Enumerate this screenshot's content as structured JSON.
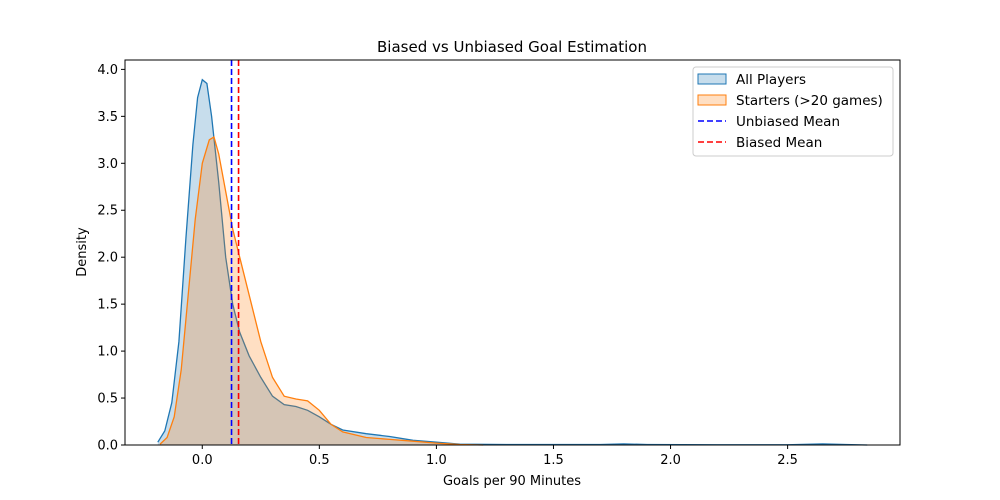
{
  "chart_data": {
    "type": "area",
    "title": "Biased vs Unbiased Goal Estimation",
    "xlabel": "Goals per 90 Minutes",
    "ylabel": "Density",
    "xlim": [
      -0.33,
      2.98
    ],
    "ylim": [
      0,
      4.1
    ],
    "xticks": [
      0.0,
      0.5,
      1.0,
      1.5,
      2.0,
      2.5
    ],
    "xtick_labels": [
      "0.0",
      "0.5",
      "1.0",
      "1.5",
      "2.0",
      "2.5"
    ],
    "yticks": [
      0.0,
      0.5,
      1.0,
      1.5,
      2.0,
      2.5,
      3.0,
      3.5,
      4.0
    ],
    "ytick_labels": [
      "0.0",
      "0.5",
      "1.0",
      "1.5",
      "2.0",
      "2.5",
      "3.0",
      "3.5",
      "4.0"
    ],
    "grid": false,
    "legend_position": "top-right",
    "series": [
      {
        "name": "All Players",
        "color": "#1f77b4",
        "fill": "rgba(31,119,180,0.25)",
        "x": [
          -0.19,
          -0.16,
          -0.13,
          -0.1,
          -0.07,
          -0.04,
          -0.02,
          0.0,
          0.02,
          0.04,
          0.07,
          0.1,
          0.13,
          0.16,
          0.2,
          0.25,
          0.3,
          0.35,
          0.4,
          0.45,
          0.5,
          0.55,
          0.6,
          0.7,
          0.8,
          0.9,
          1.0,
          1.1,
          1.3,
          1.5,
          1.7,
          1.8,
          1.9,
          2.2,
          2.5,
          2.65,
          2.75,
          2.84
        ],
        "y": [
          0.03,
          0.15,
          0.45,
          1.1,
          2.2,
          3.2,
          3.7,
          3.89,
          3.85,
          3.5,
          2.8,
          2.0,
          1.5,
          1.2,
          0.95,
          0.72,
          0.52,
          0.43,
          0.41,
          0.37,
          0.3,
          0.22,
          0.16,
          0.12,
          0.09,
          0.05,
          0.03,
          0.01,
          0.005,
          0.005,
          0.005,
          0.012,
          0.005,
          0.002,
          0.002,
          0.012,
          0.005,
          0.0
        ]
      },
      {
        "name": "Starters (>20 games)",
        "color": "#ff7f0e",
        "fill": "rgba(255,127,14,0.25)",
        "x": [
          -0.18,
          -0.15,
          -0.12,
          -0.09,
          -0.06,
          -0.03,
          0.0,
          0.03,
          0.05,
          0.07,
          0.1,
          0.13,
          0.16,
          0.2,
          0.25,
          0.3,
          0.35,
          0.4,
          0.45,
          0.5,
          0.55,
          0.6,
          0.7,
          0.8,
          0.9,
          1.0,
          1.1,
          1.2
        ],
        "y": [
          0.01,
          0.08,
          0.3,
          0.8,
          1.6,
          2.4,
          3.0,
          3.25,
          3.28,
          3.1,
          2.7,
          2.3,
          2.0,
          1.6,
          1.1,
          0.72,
          0.52,
          0.49,
          0.47,
          0.37,
          0.22,
          0.14,
          0.08,
          0.06,
          0.04,
          0.02,
          0.005,
          0.0
        ]
      }
    ],
    "reference_lines": [
      {
        "name": "Unbiased Mean",
        "x": 0.125,
        "color": "#0000ff",
        "style": "dashed"
      },
      {
        "name": "Biased Mean",
        "x": 0.155,
        "color": "#ff0000",
        "style": "dashed"
      }
    ]
  }
}
